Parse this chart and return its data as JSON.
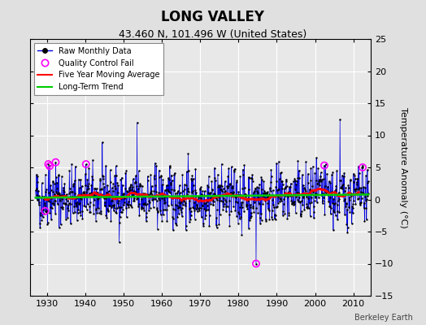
{
  "title": "LONG VALLEY",
  "subtitle": "43.460 N, 101.496 W (United States)",
  "ylabel": "Temperature Anomaly (°C)",
  "watermark": "Berkeley Earth",
  "xlim": [
    1925.5,
    2014.5
  ],
  "ylim": [
    -15,
    25
  ],
  "yticks": [
    -15,
    -10,
    -5,
    0,
    5,
    10,
    15,
    20,
    25
  ],
  "xticks": [
    1930,
    1940,
    1950,
    1960,
    1970,
    1980,
    1990,
    2000,
    2010
  ],
  "start_year": 1927,
  "end_year": 2013,
  "raw_line_color": "#0000dd",
  "dot_color": "#000000",
  "moving_avg_color": "#ff0000",
  "trend_color": "#00cc00",
  "qc_fail_color": "#ff00ff",
  "background_color": "#e8e8e8",
  "grid_color": "#ffffff",
  "fig_background": "#e0e0e0"
}
